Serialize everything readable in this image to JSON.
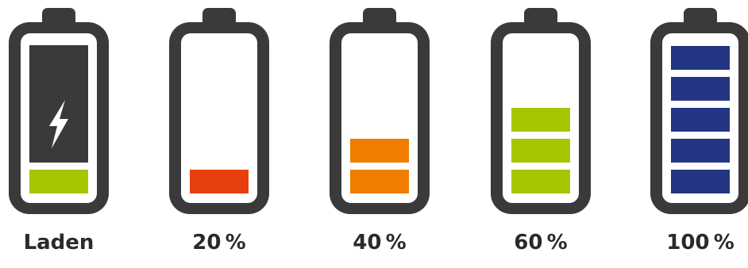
{
  "colors": {
    "casing": "#3a3a3a",
    "inner": "#ffffff",
    "screen_dark": "#3a3a3a",
    "bolt": "#ffffff",
    "label": "#2a2a2a"
  },
  "batteries": [
    {
      "label": "Laden",
      "level": 0.2,
      "segments": 1,
      "color": "#a7c500",
      "charging": true,
      "icon": "lightning-bolt-icon"
    },
    {
      "label": "20 %",
      "level": 0.2,
      "segments": 1,
      "color": "#e8400c",
      "charging": false
    },
    {
      "label": "40 %",
      "level": 0.4,
      "segments": 2,
      "color": "#f07d00",
      "charging": false
    },
    {
      "label": "60 %",
      "level": 0.6,
      "segments": 3,
      "color": "#a7c500",
      "charging": false
    },
    {
      "label": "100 %",
      "level": 1.0,
      "segments": 5,
      "color": "#233583",
      "charging": false
    }
  ]
}
